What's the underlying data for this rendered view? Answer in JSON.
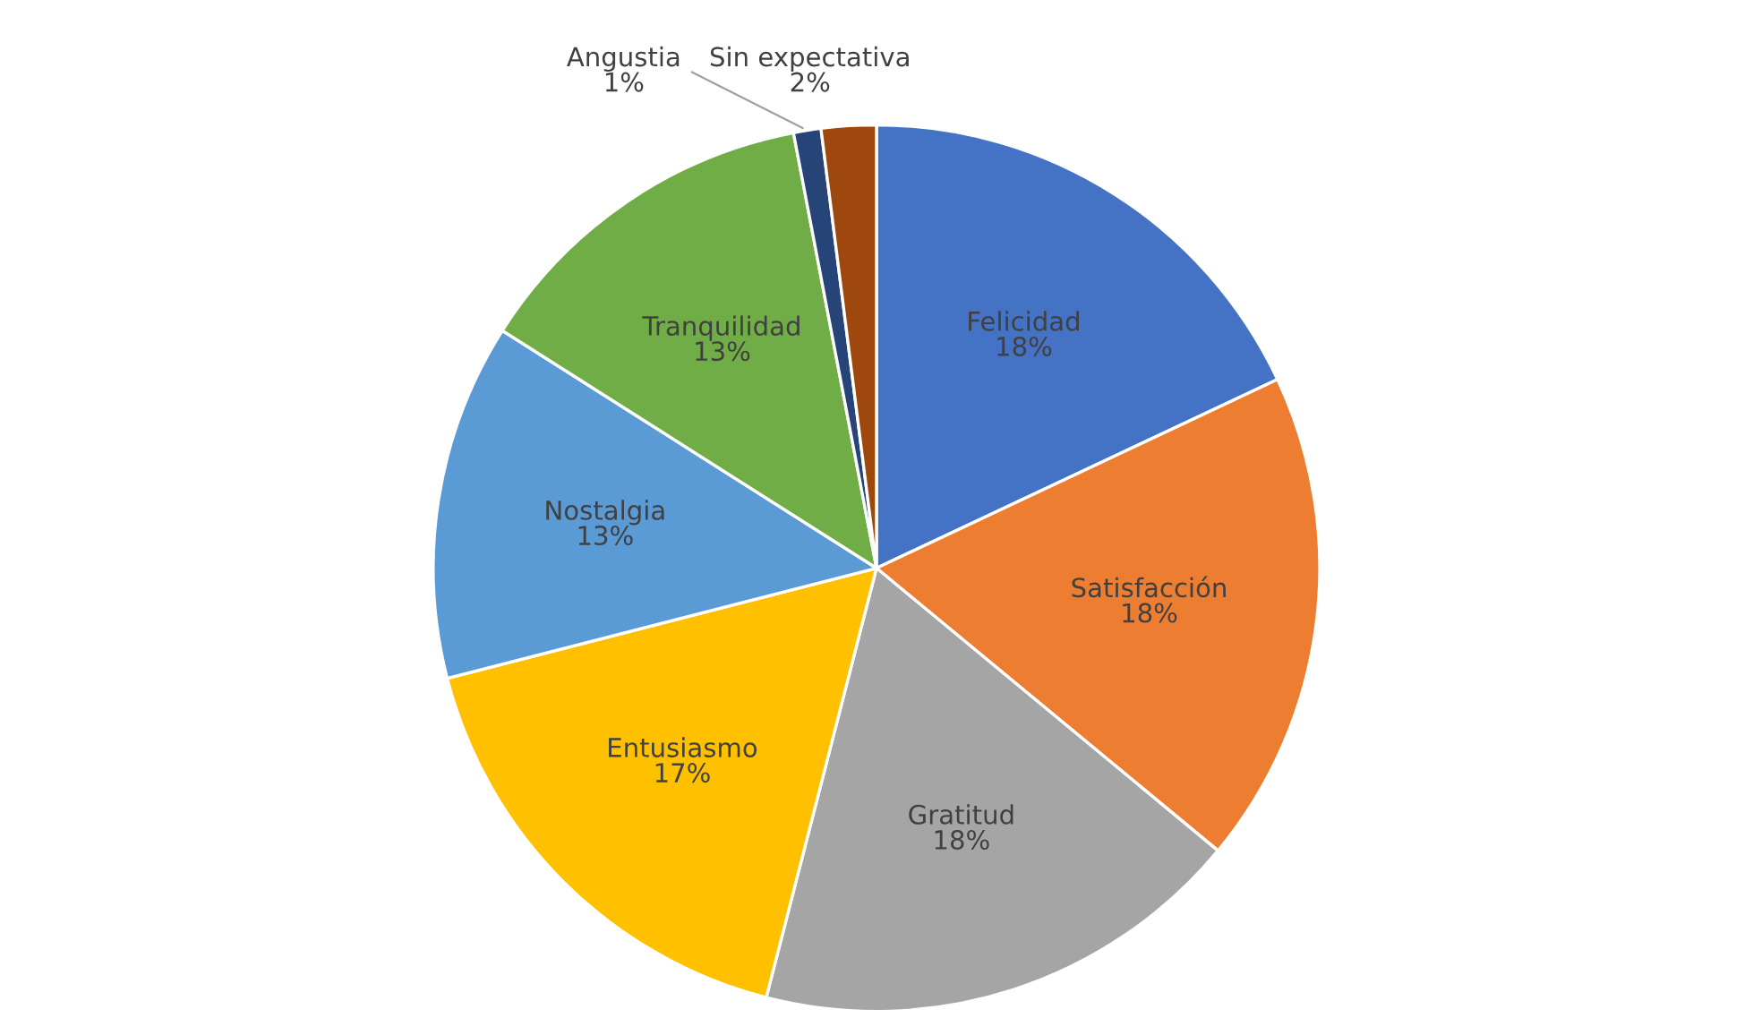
{
  "chart_data": {
    "type": "pie",
    "categories": [
      "Felicidad",
      "Satisfacción",
      "Gratitud",
      "Entusiasmo",
      "Nostalgia",
      "Tranquilidad",
      "Angustia",
      "Sin expectativa"
    ],
    "values": [
      18,
      18,
      18,
      17,
      13,
      13,
      1,
      2
    ],
    "value_labels": [
      "18%",
      "18%",
      "18%",
      "17%",
      "13%",
      "13%",
      "1%",
      "2%"
    ],
    "colors": [
      "#4472c4",
      "#ed7d31",
      "#a5a5a5",
      "#ffc000",
      "#5b9bd5",
      "#70ad47",
      "#264478",
      "#9e480e"
    ],
    "legend": false
  }
}
